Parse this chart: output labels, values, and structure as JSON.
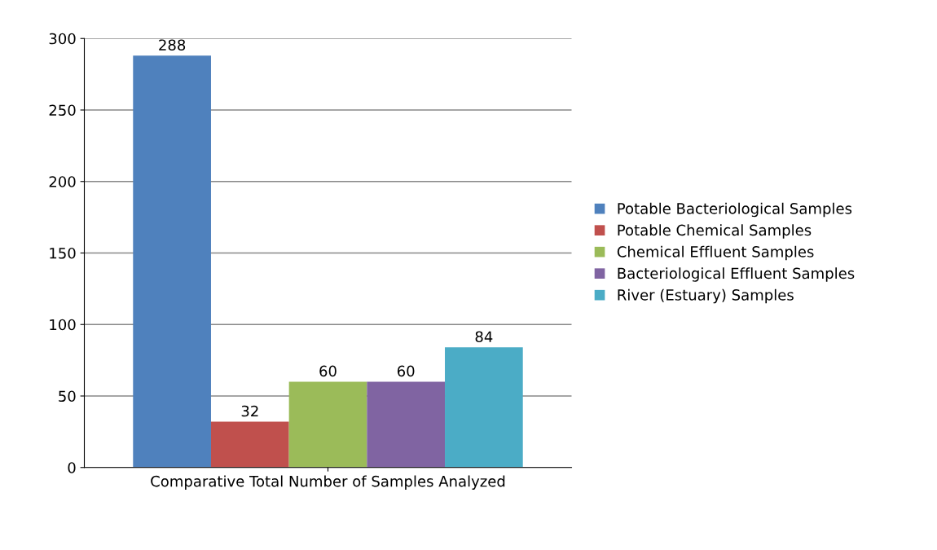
{
  "chart_data": {
    "type": "bar",
    "categories": [
      "Comparative Total Number of Samples Analyzed"
    ],
    "series": [
      {
        "name": "Potable Bacteriological Samples",
        "color": "#4f81bd",
        "values": [
          288
        ]
      },
      {
        "name": "Potable Chemical Samples",
        "color": "#c0504d",
        "values": [
          32
        ]
      },
      {
        "name": "Chemical Effluent Samples",
        "color": "#9bbb59",
        "values": [
          60
        ]
      },
      {
        "name": "Bacteriological Effluent Samples",
        "color": "#8064a2",
        "values": [
          60
        ]
      },
      {
        "name": "River (Estuary) Samples",
        "color": "#4bacc6",
        "values": [
          84
        ]
      }
    ],
    "ylim": [
      0,
      300
    ],
    "yticks": [
      0,
      50,
      100,
      150,
      200,
      250,
      300
    ],
    "grid": "y",
    "legend": "right",
    "data_labels": true
  }
}
